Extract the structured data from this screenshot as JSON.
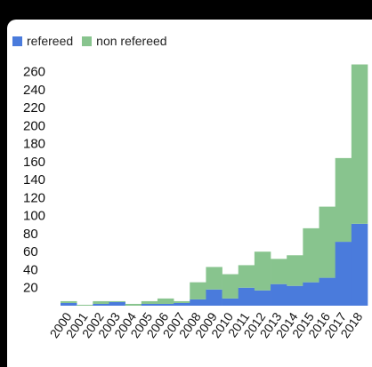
{
  "colors": {
    "refereed": "#4a7bdc",
    "non_refereed": "#88c48e"
  },
  "legend": [
    {
      "label": "refereed",
      "color": "#4a7bdc"
    },
    {
      "label": "non refereed",
      "color": "#88c48e"
    }
  ],
  "chart_data": {
    "type": "bar",
    "stacked": true,
    "categories": [
      "2000",
      "2001",
      "2002",
      "2003",
      "2004",
      "2005",
      "2006",
      "2007",
      "2008",
      "2009",
      "2010",
      "2011",
      "2012",
      "2013",
      "2014",
      "2015",
      "2016",
      "2017",
      "2018"
    ],
    "series": [
      {
        "name": "refereed",
        "color": "#4a7bdc",
        "values": [
          3,
          0,
          2,
          4,
          0,
          2,
          2,
          3,
          7,
          18,
          8,
          20,
          17,
          24,
          22,
          26,
          31,
          71,
          91
        ]
      },
      {
        "name": "non refereed",
        "color": "#88c48e",
        "values": [
          2,
          1,
          3,
          1,
          2,
          3,
          6,
          2,
          19,
          25,
          27,
          25,
          43,
          28,
          34,
          60,
          79,
          93,
          177
        ]
      }
    ],
    "yticks": [
      20,
      40,
      60,
      80,
      100,
      120,
      140,
      160,
      180,
      200,
      220,
      240,
      260
    ],
    "ylim": [
      0,
      270
    ],
    "grid": false,
    "legend_position": "top-left"
  }
}
